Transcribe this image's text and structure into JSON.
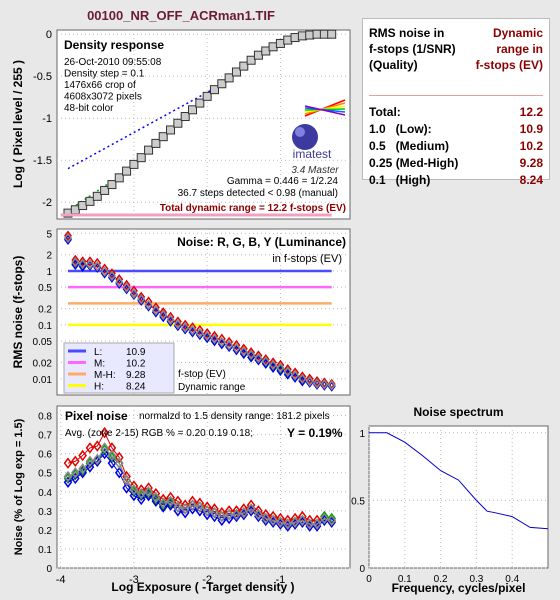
{
  "title": "00100_NR_OFF_ACRman1.TIF",
  "table": {
    "header_left": [
      "RMS noise in",
      "f-stops (1/SNR)",
      "(Quality)"
    ],
    "header_right": [
      "Dynamic",
      "range in",
      "f-stops (EV)"
    ],
    "rows": [
      {
        "label": "Total:",
        "value": "12.2"
      },
      {
        "label": "1.0   (Low):",
        "value": "10.9"
      },
      {
        "label": "0.5   (Medium)",
        "value": "10.2"
      },
      {
        "label": "0.25 (Med-High)",
        "value": "9.28"
      },
      {
        "label": "0.1   (High)",
        "value": "8.24"
      }
    ]
  },
  "panel1": {
    "heading": "Density response",
    "info": [
      "26-Oct-2010 09:55:08",
      "Density step = 0.1",
      "1476x66 crop of",
      "4608x3072 pixels",
      "48-bit color"
    ],
    "logo": "imatest",
    "version": "3.4  Master",
    "gamma": "Gamma = 0.446 = 1/2.24",
    "steps": "36.7 steps detected < 0.98 (manual)",
    "total": "Total dynamic range = 12.2 f-stops (EV)",
    "ylabel": "Log ( Pixel level / 255 )",
    "yticks": [
      "0",
      "-0.5",
      "-1",
      "-1.5",
      "-2"
    ]
  },
  "panel2": {
    "heading": "Noise: R, G, B, Y (Luminance)",
    "subheading": "in f-stops (EV)",
    "ylabel": "RMS noise (f-stops)",
    "yticks": [
      "5",
      "2",
      "1",
      "0.5",
      "0.2",
      "0.1",
      "0.05",
      "0.02",
      "0.01"
    ],
    "legend": [
      {
        "label": "L:",
        "value": "10.9",
        "color": "#4a4aff"
      },
      {
        "label": "M:",
        "value": "10.2",
        "color": "#ff66ff"
      },
      {
        "label": "M-H:",
        "value": "9.28",
        "color": "#ffaa66"
      },
      {
        "label": "H:",
        "value": "8.24",
        "color": "#ffff00"
      }
    ],
    "legend_note1": "f-stop (EV)",
    "legend_note2": "Dynamic range"
  },
  "panel3": {
    "heading": "Pixel noise",
    "norm": "normalzd to 1.5 density range: 181.2 pixels",
    "avg": "Avg. (zone 2-15) RGB % = 0.20  0.19  0.18;",
    "ybold": "Y = 0.19%",
    "ylabel": "Noise (% of Log exp = 1.5)",
    "yticks": [
      "0.8",
      "0.7",
      "0.6",
      "0.5",
      "0.4",
      "0.3",
      "0.2",
      "0.1",
      "0"
    ],
    "xticks": [
      "-4",
      "-3",
      "-2",
      "-1"
    ],
    "xlabel": "Log Exposure ( -Target density )"
  },
  "panel4": {
    "heading": "Noise spectrum",
    "yticks": [
      "1",
      "0.5",
      "0"
    ],
    "xticks": [
      "0",
      "0.1",
      "0.2",
      "0.3",
      "0.4"
    ],
    "xlabel": "Frequency, cycles/pixel"
  },
  "chart_data": [
    {
      "type": "line",
      "title": "Density response",
      "ylabel": "Log ( Pixel level / 255 )",
      "xlim": [
        -4.05,
        -0.05
      ],
      "ylim": [
        -2.2,
        0.05
      ],
      "series": [
        {
          "name": "",
          "x": [
            -3.9,
            -3.8,
            -3.7,
            -3.6,
            -3.5,
            -3.4,
            -3.3,
            -3.2,
            -3.1,
            -3.0,
            -2.9,
            -2.8,
            -2.7,
            -2.6,
            -2.5,
            -2.4,
            -2.3,
            -2.2,
            -2.1,
            -2.0,
            -1.9,
            -1.8,
            -1.7,
            -1.6,
            -1.5,
            -1.4,
            -1.3,
            -1.2,
            -1.1,
            -1.0,
            -0.9,
            -0.8,
            -0.7,
            -0.6,
            -0.5,
            -0.4,
            -0.3
          ],
          "values": [
            -2.13,
            -2.09,
            -2.04,
            -1.99,
            -1.93,
            -1.86,
            -1.79,
            -1.71,
            -1.63,
            -1.55,
            -1.47,
            -1.38,
            -1.3,
            -1.22,
            -1.14,
            -1.06,
            -0.98,
            -0.9,
            -0.82,
            -0.74,
            -0.66,
            -0.59,
            -0.52,
            -0.45,
            -0.38,
            -0.31,
            -0.25,
            -0.2,
            -0.15,
            -0.11,
            -0.07,
            -0.04,
            -0.02,
            -0.01,
            0.0,
            0.0,
            0.0
          ]
        }
      ]
    },
    {
      "type": "scatter",
      "title": "Noise: R, G, B, Y (Luminance)",
      "ylabel": "RMS noise (f-stops)",
      "yscale": "log",
      "xlim": [
        -4.05,
        -0.05
      ],
      "ylim": [
        0.005,
        6
      ],
      "x": [
        -3.9,
        -3.8,
        -3.7,
        -3.6,
        -3.5,
        -3.4,
        -3.3,
        -3.2,
        -3.1,
        -3.0,
        -2.9,
        -2.8,
        -2.7,
        -2.6,
        -2.5,
        -2.4,
        -2.3,
        -2.2,
        -2.1,
        -2.0,
        -1.9,
        -1.8,
        -1.7,
        -1.6,
        -1.5,
        -1.4,
        -1.3,
        -1.2,
        -1.1,
        -1.0,
        -0.9,
        -0.8,
        -0.7,
        -0.6,
        -0.5,
        -0.4,
        -0.3
      ],
      "series": [
        {
          "name": "R",
          "values": [
            4.5,
            1.6,
            1.5,
            1.5,
            1.4,
            1.1,
            0.9,
            0.7,
            0.55,
            0.43,
            0.33,
            0.27,
            0.21,
            0.17,
            0.14,
            0.115,
            0.1,
            0.09,
            0.08,
            0.07,
            0.062,
            0.055,
            0.048,
            0.042,
            0.036,
            0.031,
            0.027,
            0.023,
            0.02,
            0.018,
            0.015,
            0.013,
            0.011,
            0.01,
            0.009,
            0.0085,
            0.008
          ]
        },
        {
          "name": "G",
          "values": [
            4.0,
            1.4,
            1.3,
            1.3,
            1.2,
            0.95,
            0.8,
            0.6,
            0.48,
            0.37,
            0.29,
            0.23,
            0.18,
            0.15,
            0.12,
            0.1,
            0.087,
            0.077,
            0.068,
            0.06,
            0.053,
            0.047,
            0.041,
            0.036,
            0.031,
            0.027,
            0.023,
            0.02,
            0.017,
            0.015,
            0.013,
            0.011,
            0.0095,
            0.0088,
            0.008,
            0.0078,
            0.0075
          ]
        },
        {
          "name": "B",
          "values": [
            3.8,
            1.3,
            1.2,
            1.25,
            1.15,
            0.9,
            0.75,
            0.58,
            0.46,
            0.36,
            0.28,
            0.22,
            0.17,
            0.14,
            0.115,
            0.095,
            0.083,
            0.073,
            0.065,
            0.057,
            0.05,
            0.044,
            0.039,
            0.034,
            0.029,
            0.025,
            0.022,
            0.019,
            0.016,
            0.014,
            0.012,
            0.0105,
            0.009,
            0.0085,
            0.0078,
            0.0075,
            0.0072
          ]
        },
        {
          "name": "Y",
          "values": [
            4.1,
            1.45,
            1.35,
            1.32,
            1.22,
            0.97,
            0.81,
            0.62,
            0.49,
            0.38,
            0.3,
            0.235,
            0.185,
            0.152,
            0.124,
            0.102,
            0.089,
            0.079,
            0.07,
            0.062,
            0.055,
            0.048,
            0.042,
            0.037,
            0.032,
            0.028,
            0.024,
            0.021,
            0.018,
            0.016,
            0.0135,
            0.0115,
            0.01,
            0.009,
            0.0082,
            0.0079,
            0.0076
          ]
        }
      ],
      "reference_lines": [
        {
          "name": "L",
          "y": 1.0,
          "x_end": -0.3,
          "color": "#4a4aff"
        },
        {
          "name": "M",
          "y": 0.5,
          "x_end": -0.3,
          "color": "#ff66ff"
        },
        {
          "name": "M-H",
          "y": 0.25,
          "x_end": -0.3,
          "color": "#ffaa66"
        },
        {
          "name": "H",
          "y": 0.1,
          "x_end": -0.3,
          "color": "#ffff00"
        }
      ]
    },
    {
      "type": "line",
      "title": "Pixel noise",
      "xlabel": "Log Exposure ( -Target density )",
      "ylabel": "Noise (% of Log exp = 1.5)",
      "xlim": [
        -4.05,
        -0.05
      ],
      "ylim": [
        0,
        0.85
      ],
      "x": [
        -3.9,
        -3.8,
        -3.7,
        -3.6,
        -3.5,
        -3.4,
        -3.3,
        -3.2,
        -3.1,
        -3.0,
        -2.9,
        -2.8,
        -2.7,
        -2.6,
        -2.5,
        -2.4,
        -2.3,
        -2.2,
        -2.1,
        -2.0,
        -1.9,
        -1.8,
        -1.7,
        -1.6,
        -1.5,
        -1.4,
        -1.3,
        -1.2,
        -1.1,
        -1.0,
        -0.9,
        -0.8,
        -0.7,
        -0.6,
        -0.5,
        -0.4,
        -0.3
      ],
      "series": [
        {
          "name": "R",
          "values": [
            0.55,
            0.56,
            0.59,
            0.63,
            0.64,
            0.71,
            0.63,
            0.58,
            0.48,
            0.43,
            0.41,
            0.42,
            0.39,
            0.36,
            0.37,
            0.35,
            0.33,
            0.35,
            0.34,
            0.32,
            0.31,
            0.29,
            0.3,
            0.3,
            0.31,
            0.33,
            0.3,
            0.28,
            0.27,
            0.26,
            0.25,
            0.26,
            0.27,
            0.25,
            0.25,
            0.26,
            0.25
          ]
        },
        {
          "name": "G",
          "values": [
            0.47,
            0.49,
            0.51,
            0.55,
            0.56,
            0.62,
            0.58,
            0.55,
            0.46,
            0.4,
            0.38,
            0.39,
            0.36,
            0.33,
            0.34,
            0.32,
            0.31,
            0.33,
            0.32,
            0.3,
            0.29,
            0.27,
            0.28,
            0.28,
            0.29,
            0.31,
            0.28,
            0.26,
            0.25,
            0.24,
            0.23,
            0.24,
            0.25,
            0.23,
            0.23,
            0.27,
            0.26
          ]
        },
        {
          "name": "B",
          "values": [
            0.45,
            0.47,
            0.5,
            0.53,
            0.56,
            0.6,
            0.55,
            0.5,
            0.42,
            0.38,
            0.36,
            0.38,
            0.35,
            0.32,
            0.33,
            0.3,
            0.29,
            0.31,
            0.3,
            0.28,
            0.27,
            0.25,
            0.26,
            0.27,
            0.28,
            0.3,
            0.27,
            0.25,
            0.24,
            0.23,
            0.22,
            0.23,
            0.24,
            0.22,
            0.22,
            0.25,
            0.24
          ]
        },
        {
          "name": "Y",
          "values": [
            0.48,
            0.5,
            0.52,
            0.56,
            0.57,
            0.63,
            0.59,
            0.55,
            0.46,
            0.41,
            0.39,
            0.4,
            0.37,
            0.34,
            0.35,
            0.32,
            0.31,
            0.33,
            0.32,
            0.3,
            0.29,
            0.27,
            0.28,
            0.28,
            0.29,
            0.31,
            0.28,
            0.26,
            0.25,
            0.24,
            0.23,
            0.24,
            0.25,
            0.23,
            0.23,
            0.26,
            0.25
          ]
        }
      ]
    },
    {
      "type": "line",
      "title": "Noise spectrum",
      "xlabel": "Frequency, cycles/pixel",
      "xlim": [
        0,
        0.5
      ],
      "ylim": [
        0,
        1.05
      ],
      "series": [
        {
          "name": "",
          "x": [
            0,
            0.05,
            0.1,
            0.15,
            0.2,
            0.25,
            0.3,
            0.33,
            0.35,
            0.4,
            0.45,
            0.5
          ],
          "values": [
            1.0,
            1.0,
            0.93,
            0.83,
            0.72,
            0.65,
            0.5,
            0.42,
            0.41,
            0.38,
            0.3,
            0.29
          ]
        }
      ]
    }
  ]
}
